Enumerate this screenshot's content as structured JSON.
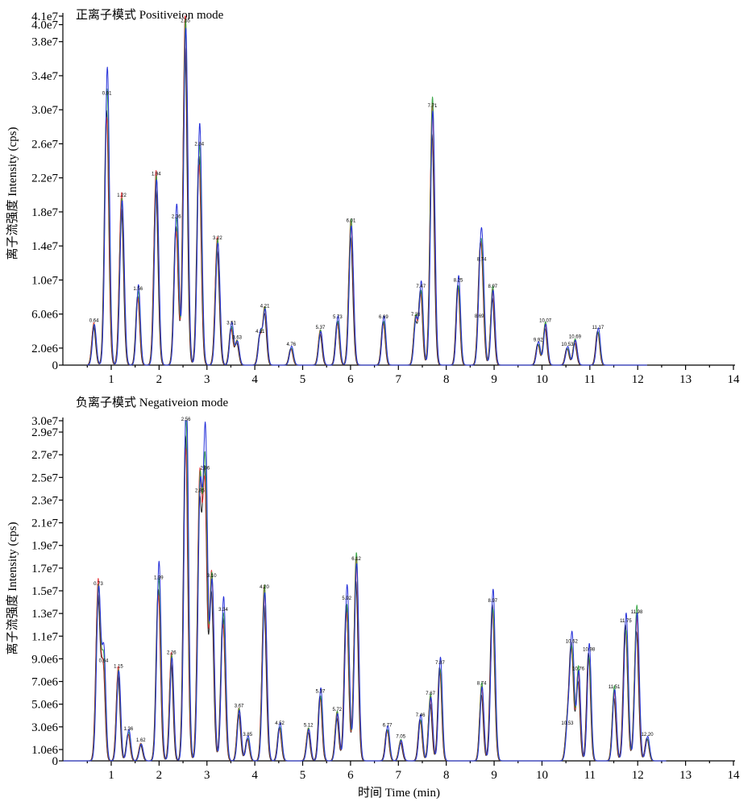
{
  "chart_data": [
    {
      "type": "line",
      "title": "正离子模式 Positiveion mode",
      "ylabel": "离子流强度 Intensity (cps)",
      "xlabel": "",
      "xlim": [
        0,
        14
      ],
      "ylim": [
        0,
        41000000
      ],
      "grid": false,
      "xticks": [
        "1",
        "2",
        "3",
        "4",
        "5",
        "6",
        "7",
        "8",
        "9",
        "10",
        "11",
        "12",
        "13",
        "14"
      ],
      "yticks": [
        {
          "value": 0,
          "label": "0"
        },
        {
          "value": 2000000,
          "label": "2.0e6"
        },
        {
          "value": 6000000,
          "label": "6.0e6"
        },
        {
          "value": 10000000,
          "label": "1.0e7"
        },
        {
          "value": 14000000,
          "label": "1.4e7"
        },
        {
          "value": 18000000,
          "label": "1.8e7"
        },
        {
          "value": 22000000,
          "label": "2.2e7"
        },
        {
          "value": 26000000,
          "label": "2.6e7"
        },
        {
          "value": 30000000,
          "label": "3.0e7"
        },
        {
          "value": 34000000,
          "label": "3.4e7"
        },
        {
          "value": 38000000,
          "label": "3.8e7"
        },
        {
          "value": 40000000,
          "label": "4.0e7"
        },
        {
          "value": 41000000,
          "label": "4.1e7"
        }
      ],
      "series_colors": [
        "#000000",
        "#e8262a",
        "#1d9a2e",
        "#2530d9"
      ],
      "peaks": [
        {
          "x": 0.64,
          "y": 4800000,
          "label": "0.64"
        },
        {
          "x": 0.91,
          "y": 31500000,
          "label": "0.91"
        },
        {
          "x": 1.22,
          "y": 19500000,
          "label": "1.22"
        },
        {
          "x": 1.56,
          "y": 8500000,
          "label": "1.56"
        },
        {
          "x": 1.94,
          "y": 22000000,
          "label": "1.94"
        },
        {
          "x": 2.36,
          "y": 17000000,
          "label": "2.36"
        },
        {
          "x": 2.55,
          "y": 40000000,
          "label": "2.55"
        },
        {
          "x": 2.84,
          "y": 25500000,
          "label": "2.84"
        },
        {
          "x": 3.22,
          "y": 14500000,
          "label": "3.22"
        },
        {
          "x": 3.51,
          "y": 4500000,
          "label": "3.51"
        },
        {
          "x": 3.63,
          "y": 2800000,
          "label": "3.63"
        },
        {
          "x": 4.11,
          "y": 3500000,
          "label": "4.11"
        },
        {
          "x": 4.21,
          "y": 6500000,
          "label": "4.21"
        },
        {
          "x": 4.76,
          "y": 2000000,
          "label": "4.76"
        },
        {
          "x": 5.37,
          "y": 4000000,
          "label": "5.37"
        },
        {
          "x": 5.73,
          "y": 5200000,
          "label": "5.73"
        },
        {
          "x": 6.01,
          "y": 16500000,
          "label": "6.01"
        },
        {
          "x": 6.69,
          "y": 5200000,
          "label": "6.69"
        },
        {
          "x": 7.36,
          "y": 5500000,
          "label": "7.36"
        },
        {
          "x": 7.47,
          "y": 8800000,
          "label": "7.47"
        },
        {
          "x": 7.71,
          "y": 30000000,
          "label": "7.71"
        },
        {
          "x": 8.25,
          "y": 9500000,
          "label": "8.25"
        },
        {
          "x": 8.69,
          "y": 5300000,
          "label": "8.69"
        },
        {
          "x": 8.74,
          "y": 12000000,
          "label": "8.74"
        },
        {
          "x": 8.97,
          "y": 8800000,
          "label": "8.97"
        },
        {
          "x": 9.92,
          "y": 2500000,
          "label": "9.92"
        },
        {
          "x": 10.07,
          "y": 4800000,
          "label": "10.07"
        },
        {
          "x": 10.53,
          "y": 2000000,
          "label": "10.53"
        },
        {
          "x": 10.69,
          "y": 2900000,
          "label": "10.69"
        },
        {
          "x": 11.17,
          "y": 4000000,
          "label": "11.17"
        }
      ]
    },
    {
      "type": "line",
      "title": "负离子模式 Negativeion mode",
      "ylabel": "离子流强度 Intensity (cps)",
      "xlabel": "时间 Time (min)",
      "xlim": [
        0,
        14
      ],
      "ylim": [
        0,
        30000000
      ],
      "grid": false,
      "xticks": [
        "1",
        "2",
        "3",
        "4",
        "5",
        "6",
        "7",
        "8",
        "9",
        "10",
        "11",
        "12",
        "13",
        "14"
      ],
      "yticks": [
        {
          "value": 0,
          "label": "0"
        },
        {
          "value": 1000000,
          "label": "1.0e6"
        },
        {
          "value": 3000000,
          "label": "3.0e6"
        },
        {
          "value": 5000000,
          "label": "5.0e6"
        },
        {
          "value": 7000000,
          "label": "7.0e6"
        },
        {
          "value": 9000000,
          "label": "9.0e6"
        },
        {
          "value": 11000000,
          "label": "1.1e7"
        },
        {
          "value": 13000000,
          "label": "1.3e7"
        },
        {
          "value": 15000000,
          "label": "1.5e7"
        },
        {
          "value": 17000000,
          "label": "1.7e7"
        },
        {
          "value": 19000000,
          "label": "1.9e7"
        },
        {
          "value": 21000000,
          "label": "2.1e7"
        },
        {
          "value": 23000000,
          "label": "2.3e7"
        },
        {
          "value": 25000000,
          "label": "2.5e7"
        },
        {
          "value": 27000000,
          "label": "2.7e7"
        },
        {
          "value": 29000000,
          "label": "2.9e7"
        },
        {
          "value": 30000000,
          "label": "3.0e7"
        }
      ],
      "series_colors": [
        "#000000",
        "#e8262a",
        "#1d9a2e",
        "#2530d9"
      ],
      "peaks": [
        {
          "x": 0.73,
          "y": 15300000,
          "label": "0.73"
        },
        {
          "x": 0.84,
          "y": 8500000,
          "label": "0.84"
        },
        {
          "x": 1.15,
          "y": 8000000,
          "label": "1.15"
        },
        {
          "x": 1.36,
          "y": 2500000,
          "label": "1.36"
        },
        {
          "x": 1.62,
          "y": 1500000,
          "label": "1.62"
        },
        {
          "x": 1.99,
          "y": 15800000,
          "label": "1.99"
        },
        {
          "x": 2.26,
          "y": 9200000,
          "label": "2.26"
        },
        {
          "x": 2.56,
          "y": 29800000,
          "label": "2.56"
        },
        {
          "x": 2.85,
          "y": 23500000,
          "label": "2.85"
        },
        {
          "x": 2.96,
          "y": 25500000,
          "label": "2.96"
        },
        {
          "x": 3.1,
          "y": 16000000,
          "label": "3.10"
        },
        {
          "x": 3.34,
          "y": 13000000,
          "label": "3.34"
        },
        {
          "x": 3.67,
          "y": 4500000,
          "label": "3.67"
        },
        {
          "x": 3.85,
          "y": 2000000,
          "label": "3.85"
        },
        {
          "x": 4.2,
          "y": 15000000,
          "label": "4.20"
        },
        {
          "x": 4.52,
          "y": 3000000,
          "label": "4.52"
        },
        {
          "x": 5.12,
          "y": 2800000,
          "label": "5.12"
        },
        {
          "x": 5.37,
          "y": 5800000,
          "label": "5.37"
        },
        {
          "x": 5.72,
          "y": 4200000,
          "label": "5.72"
        },
        {
          "x": 5.92,
          "y": 14000000,
          "label": "5.92"
        },
        {
          "x": 6.12,
          "y": 17500000,
          "label": "6.12"
        },
        {
          "x": 6.77,
          "y": 2800000,
          "label": "6.77"
        },
        {
          "x": 7.05,
          "y": 1800000,
          "label": "7.05"
        },
        {
          "x": 7.46,
          "y": 3700000,
          "label": "7.46"
        },
        {
          "x": 7.67,
          "y": 5600000,
          "label": "7.67"
        },
        {
          "x": 7.87,
          "y": 8300000,
          "label": "7.87"
        },
        {
          "x": 8.74,
          "y": 6500000,
          "label": "8.74"
        },
        {
          "x": 8.97,
          "y": 13800000,
          "label": "8.97"
        },
        {
          "x": 10.53,
          "y": 3000000,
          "label": "10.53"
        },
        {
          "x": 10.62,
          "y": 10200000,
          "label": "10.62"
        },
        {
          "x": 10.76,
          "y": 7800000,
          "label": "10.76"
        },
        {
          "x": 10.98,
          "y": 9500000,
          "label": "10.98"
        },
        {
          "x": 11.51,
          "y": 6200000,
          "label": "11.51"
        },
        {
          "x": 11.75,
          "y": 12000000,
          "label": "11.75"
        },
        {
          "x": 11.98,
          "y": 12800000,
          "label": "11.98"
        },
        {
          "x": 12.2,
          "y": 2000000,
          "label": "12.20"
        }
      ]
    }
  ]
}
